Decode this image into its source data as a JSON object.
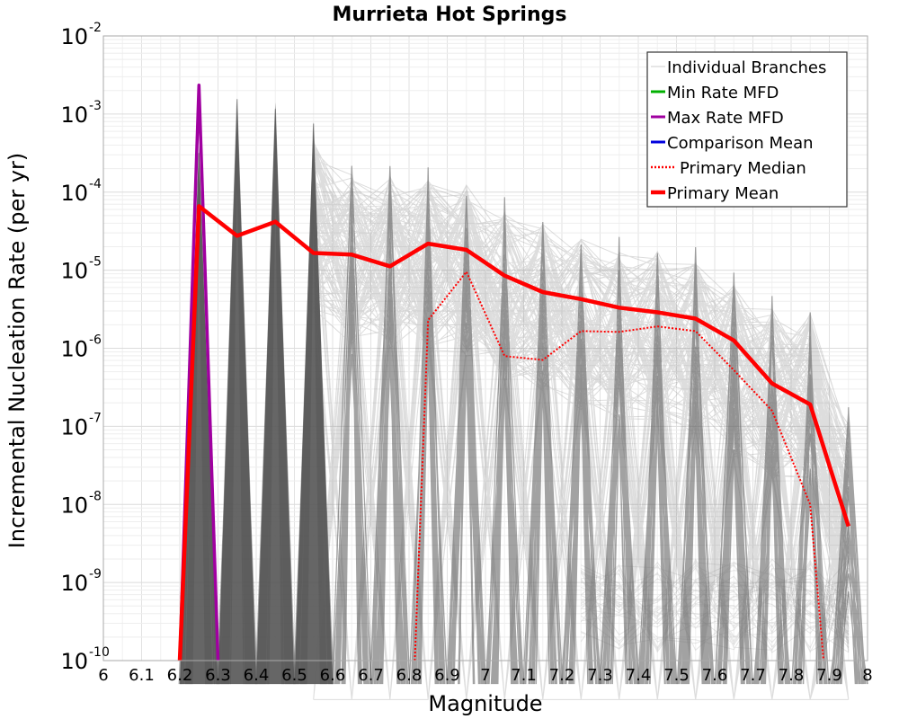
{
  "chart_data": {
    "type": "line",
    "title": "Murrieta Hot Springs",
    "xlabel": "Magnitude",
    "ylabel": "Incremental Nucleation Rate (per yr)",
    "xlim": [
      6.0,
      8.0
    ],
    "ylim_log10": [
      -10,
      -2
    ],
    "y_scale": "log",
    "grid": true,
    "legend_position": "top-right",
    "x_ticks": [
      6.0,
      6.1,
      6.2,
      6.3,
      6.4,
      6.5,
      6.6,
      6.7,
      6.8,
      6.9,
      7.0,
      7.1,
      7.2,
      7.3,
      7.4,
      7.5,
      7.6,
      7.7,
      7.8,
      7.9,
      8.0
    ],
    "x_tick_labels": [
      "6",
      "6.1",
      "6.2",
      "6.3",
      "6.4",
      "6.5",
      "6.6",
      "6.7",
      "6.8",
      "6.9",
      "7",
      "7.1",
      "7.2",
      "7.3",
      "7.4",
      "7.5",
      "7.6",
      "7.7",
      "7.8",
      "7.9",
      "8"
    ],
    "y_ticks": [
      {
        "base": "10",
        "exp": "-2",
        "value": -2
      },
      {
        "base": "10",
        "exp": "-3",
        "value": -3
      },
      {
        "base": "10",
        "exp": "-4",
        "value": -4
      },
      {
        "base": "10",
        "exp": "-5",
        "value": -5
      },
      {
        "base": "10",
        "exp": "-6",
        "value": -6
      },
      {
        "base": "10",
        "exp": "-7",
        "value": -7
      },
      {
        "base": "10",
        "exp": "-8",
        "value": -8
      },
      {
        "base": "10",
        "exp": "-9",
        "value": -9
      },
      {
        "base": "10",
        "exp": "-10",
        "value": -10
      }
    ],
    "legend": [
      {
        "name": "Individual Branches",
        "color": "#cccccc",
        "style": "solid-thin"
      },
      {
        "name": "Min Rate MFD",
        "color": "#00b000",
        "style": "solid"
      },
      {
        "name": "Max Rate MFD",
        "color": "#a000a0",
        "style": "solid"
      },
      {
        "name": "Comparison Mean",
        "color": "#0000dd",
        "style": "solid"
      },
      {
        "name": "Primary Median",
        "color": "#ff0000",
        "style": "dotted"
      },
      {
        "name": "Primary Mean",
        "color": "#ff0000",
        "style": "solid-thick"
      }
    ],
    "branch_peaks": {
      "note": "log10 of peak incremental rate of the individual-branch fan at each magnitude bin",
      "x": [
        6.25,
        6.35,
        6.45,
        6.55,
        6.65,
        6.75,
        6.85,
        6.95,
        7.05,
        7.15,
        7.25,
        7.35,
        7.45,
        7.55,
        7.65,
        7.75,
        7.85,
        7.95
      ],
      "log10_peak": [
        -3.4,
        -2.8,
        -2.85,
        -3.1,
        -3.55,
        -3.6,
        -3.65,
        -3.7,
        -4.05,
        -4.2,
        -4.4,
        -4.55,
        -4.55,
        -4.7,
        -5.0,
        -5.3,
        -5.35,
        -6.7
      ]
    },
    "series": [
      {
        "name": "Max Rate MFD",
        "color": "#a000a0",
        "x": [
          6.2,
          6.25,
          6.3
        ],
        "log10_y": [
          -10,
          -2.63,
          -10
        ]
      },
      {
        "name": "Primary Mean",
        "color": "#ff0000",
        "x": [
          6.2,
          6.25,
          6.35,
          6.45,
          6.55,
          6.65,
          6.75,
          6.85,
          6.95,
          7.05,
          7.15,
          7.25,
          7.35,
          7.45,
          7.55,
          7.65,
          7.75,
          7.85,
          7.95
        ],
        "log10_y": [
          -10,
          -4.18,
          -4.56,
          -4.38,
          -4.78,
          -4.8,
          -4.95,
          -4.66,
          -4.74,
          -5.07,
          -5.28,
          -5.37,
          -5.48,
          -5.54,
          -5.62,
          -5.9,
          -6.45,
          -6.72,
          -8.28
        ]
      },
      {
        "name": "Primary Median",
        "color": "#ff0000",
        "x": [
          6.815,
          6.85,
          6.95,
          7.05,
          7.15,
          7.25,
          7.35,
          7.45,
          7.55,
          7.65,
          7.75,
          7.85,
          7.885
        ],
        "log10_y": [
          -10,
          -5.64,
          -5.02,
          -6.1,
          -6.15,
          -5.78,
          -5.79,
          -5.72,
          -5.78,
          -6.28,
          -6.8,
          -8.0,
          -10
        ]
      }
    ]
  }
}
